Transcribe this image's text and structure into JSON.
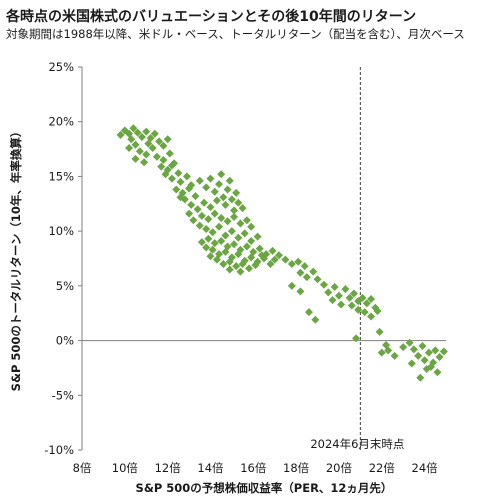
{
  "chart_data": {
    "type": "scatter",
    "title": "各時点の米国株式のバリュエーションとその後10年間のリターン",
    "subtitle": "対象期間は1988年以降、米ドル・ベース、トータルリターン（配当を含む）、月次ベース",
    "xlabel": "S&P 500の予想株価収益率（PER、12ヵ月先）",
    "ylabel": "S&P 500のトータルリターン（10年、年率換算）",
    "xlim": [
      8,
      25
    ],
    "ylim": [
      -10,
      25
    ],
    "x_ticks": [
      8,
      10,
      12,
      14,
      16,
      18,
      20,
      22,
      24
    ],
    "x_tick_labels": [
      "8倍",
      "10倍",
      "12倍",
      "14倍",
      "16倍",
      "18倍",
      "20倍",
      "22倍",
      "24倍"
    ],
    "y_ticks": [
      -10,
      -5,
      0,
      5,
      10,
      15,
      20,
      25
    ],
    "y_tick_labels": [
      "-10%",
      "-5%",
      "0%",
      "5%",
      "10%",
      "15%",
      "20%",
      "25%"
    ],
    "marker": "diamond",
    "grid": false,
    "legend": "none",
    "colors": {
      "points": "#6aa642",
      "axis": "#7f7f7f",
      "reference_line": "#404040"
    },
    "reference_line": {
      "x": 21.0,
      "style": "dashed",
      "label": "2024年6月末時点"
    },
    "points": [
      [
        9.8,
        18.8
      ],
      [
        10.0,
        19.2
      ],
      [
        10.2,
        18.9
      ],
      [
        10.4,
        19.4
      ],
      [
        10.6,
        19.0
      ],
      [
        10.3,
        18.4
      ],
      [
        10.5,
        17.9
      ],
      [
        10.8,
        18.6
      ],
      [
        11.0,
        19.1
      ],
      [
        11.2,
        18.5
      ],
      [
        11.4,
        18.9
      ],
      [
        11.6,
        18.2
      ],
      [
        11.8,
        17.8
      ],
      [
        12.0,
        18.4
      ],
      [
        10.7,
        17.3
      ],
      [
        11.0,
        17.0
      ],
      [
        11.3,
        17.6
      ],
      [
        11.5,
        16.8
      ],
      [
        11.8,
        16.5
      ],
      [
        12.1,
        17.1
      ],
      [
        10.5,
        16.6
      ],
      [
        10.9,
        16.3
      ],
      [
        11.7,
        15.9
      ],
      [
        12.0,
        15.6
      ],
      [
        12.3,
        16.2
      ],
      [
        12.5,
        15.3
      ],
      [
        12.2,
        14.8
      ],
      [
        12.6,
        14.5
      ],
      [
        12.9,
        15.0
      ],
      [
        13.1,
        14.2
      ],
      [
        12.4,
        13.8
      ],
      [
        12.7,
        13.5
      ],
      [
        13.0,
        13.9
      ],
      [
        13.3,
        13.2
      ],
      [
        13.5,
        14.6
      ],
      [
        13.8,
        14.0
      ],
      [
        14.0,
        14.8
      ],
      [
        14.2,
        13.6
      ],
      [
        14.4,
        14.3
      ],
      [
        14.6,
        13.1
      ],
      [
        14.8,
        13.8
      ],
      [
        15.0,
        12.9
      ],
      [
        15.2,
        13.5
      ],
      [
        14.5,
        15.2
      ],
      [
        14.9,
        14.6
      ],
      [
        15.3,
        12.6
      ],
      [
        15.5,
        12.1
      ],
      [
        15.1,
        11.9
      ],
      [
        14.7,
        12.4
      ],
      [
        14.3,
        12.8
      ],
      [
        14.0,
        12.2
      ],
      [
        13.7,
        12.6
      ],
      [
        13.4,
        12.0
      ],
      [
        13.1,
        12.4
      ],
      [
        12.8,
        12.9
      ],
      [
        13.6,
        11.4
      ],
      [
        13.9,
        11.1
      ],
      [
        14.2,
        11.6
      ],
      [
        14.5,
        11.2
      ],
      [
        14.8,
        10.9
      ],
      [
        15.1,
        11.3
      ],
      [
        15.4,
        10.7
      ],
      [
        15.7,
        11.0
      ],
      [
        15.9,
        10.4
      ],
      [
        13.2,
        11.0
      ],
      [
        13.5,
        10.5
      ],
      [
        13.8,
        10.2
      ],
      [
        14.1,
        9.9
      ],
      [
        14.4,
        10.4
      ],
      [
        14.7,
        9.6
      ],
      [
        15.0,
        10.0
      ],
      [
        15.3,
        9.4
      ],
      [
        15.6,
        9.8
      ],
      [
        15.9,
        9.1
      ],
      [
        16.2,
        9.5
      ],
      [
        13.9,
        9.3
      ],
      [
        14.2,
        8.9
      ],
      [
        14.5,
        9.1
      ],
      [
        14.8,
        8.6
      ],
      [
        15.1,
        8.8
      ],
      [
        15.4,
        8.3
      ],
      [
        15.7,
        8.6
      ],
      [
        16.0,
        8.1
      ],
      [
        16.3,
        8.4
      ],
      [
        16.6,
        7.9
      ],
      [
        16.9,
        8.2
      ],
      [
        17.2,
        7.8
      ],
      [
        14.1,
        8.3
      ],
      [
        14.4,
        7.9
      ],
      [
        14.7,
        8.1
      ],
      [
        15.0,
        7.6
      ],
      [
        15.3,
        7.9
      ],
      [
        15.6,
        7.3
      ],
      [
        15.9,
        7.6
      ],
      [
        16.2,
        7.2
      ],
      [
        16.5,
        7.5
      ],
      [
        16.8,
        7.0
      ],
      [
        14.3,
        7.4
      ],
      [
        14.6,
        7.0
      ],
      [
        14.9,
        7.2
      ],
      [
        15.2,
        6.8
      ],
      [
        15.5,
        7.0
      ],
      [
        15.8,
        6.6
      ],
      [
        14.0,
        7.7
      ],
      [
        13.8,
        8.5
      ],
      [
        13.6,
        9.0
      ],
      [
        14.9,
        6.5
      ],
      [
        15.4,
        6.3
      ],
      [
        16.1,
        6.9
      ],
      [
        17.5,
        7.4
      ],
      [
        17.8,
        7.0
      ],
      [
        18.1,
        7.2
      ],
      [
        18.4,
        6.8
      ],
      [
        18.2,
        6.2
      ],
      [
        18.5,
        5.8
      ],
      [
        18.8,
        6.3
      ],
      [
        19.0,
        5.6
      ],
      [
        19.3,
        5.1
      ],
      [
        19.5,
        4.4
      ],
      [
        19.8,
        4.9
      ],
      [
        20.0,
        4.1
      ],
      [
        20.3,
        4.7
      ],
      [
        20.5,
        3.9
      ],
      [
        20.7,
        4.3
      ],
      [
        20.9,
        3.6
      ],
      [
        21.1,
        3.9
      ],
      [
        21.3,
        3.4
      ],
      [
        21.5,
        3.8
      ],
      [
        21.7,
        3.0
      ],
      [
        20.6,
        3.2
      ],
      [
        20.9,
        2.8
      ],
      [
        21.2,
        2.6
      ],
      [
        21.5,
        2.2
      ],
      [
        21.8,
        2.7
      ],
      [
        20.1,
        3.3
      ],
      [
        19.7,
        3.7
      ],
      [
        18.6,
        2.6
      ],
      [
        18.9,
        1.9
      ],
      [
        17.8,
        5.0
      ],
      [
        18.2,
        4.5
      ],
      [
        21.9,
        0.8
      ],
      [
        22.0,
        -1.1
      ],
      [
        22.3,
        -0.9
      ],
      [
        22.6,
        -1.4
      ],
      [
        23.0,
        -0.6
      ],
      [
        23.3,
        -0.2
      ],
      [
        23.5,
        -0.8
      ],
      [
        23.7,
        -1.4
      ],
      [
        23.9,
        -0.5
      ],
      [
        24.0,
        -1.8
      ],
      [
        24.2,
        -1.1
      ],
      [
        24.4,
        -2.0
      ],
      [
        24.5,
        -0.9
      ],
      [
        24.7,
        -1.5
      ],
      [
        24.9,
        -1.0
      ],
      [
        23.4,
        -2.1
      ],
      [
        24.1,
        -2.6
      ],
      [
        24.6,
        -2.9
      ],
      [
        23.8,
        -3.4
      ],
      [
        24.3,
        -2.4
      ],
      [
        20.8,
        0.2
      ],
      [
        22.2,
        -0.4
      ],
      [
        11.1,
        18.0
      ],
      [
        12.2,
        16.0
      ],
      [
        10.2,
        17.6
      ],
      [
        16.4,
        7.8
      ],
      [
        17.0,
        7.4
      ],
      [
        13.0,
        11.6
      ],
      [
        12.6,
        13.1
      ],
      [
        11.9,
        15.2
      ]
    ]
  }
}
